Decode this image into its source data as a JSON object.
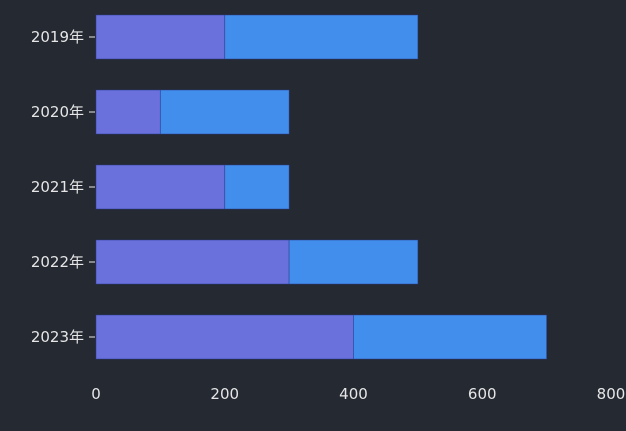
{
  "chart_data": {
    "type": "bar",
    "orientation": "horizontal",
    "stacked": true,
    "categories": [
      "2019年",
      "2020年",
      "2021年",
      "2022年",
      "2023年"
    ],
    "series": [
      {
        "values": [
          200,
          100,
          200,
          300,
          400
        ],
        "color": "#6a70dc"
      },
      {
        "values": [
          300,
          200,
          100,
          200,
          300
        ],
        "color": "#428eec"
      }
    ],
    "xlim": [
      0,
      800
    ],
    "xticks": [
      "0",
      "200",
      "400",
      "600",
      "800"
    ],
    "grid": false,
    "legend": "none",
    "background": "#252932"
  }
}
